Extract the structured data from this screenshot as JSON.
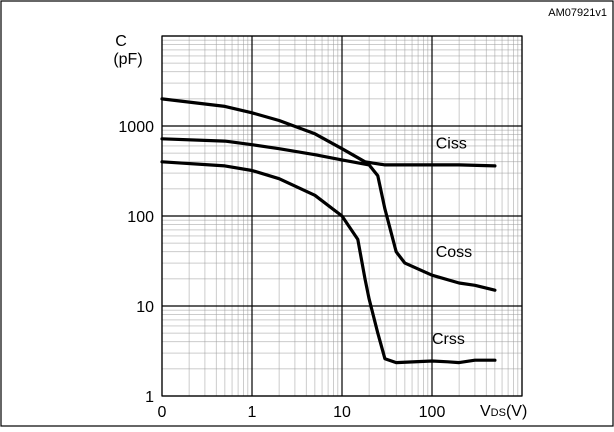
{
  "figure_id": "AM07921v1",
  "chart_data": {
    "type": "line",
    "title": "",
    "xlabel": "VDS(V)",
    "xlabel_main": "V",
    "xlabel_sub": "DS",
    "xlabel_unit": "(V)",
    "ylabel": "C",
    "ylabel_unit": "(pF)",
    "x_scale": "log (first decade labeled 0)",
    "y_scale": "log",
    "xlim": [
      0.1,
      1000
    ],
    "ylim": [
      1,
      10000
    ],
    "grid": true,
    "legend": "none (series labeled inline)",
    "x_ticks": [
      {
        "value": 0.1,
        "label": "0"
      },
      {
        "value": 1,
        "label": "1"
      },
      {
        "value": 10,
        "label": "10"
      },
      {
        "value": 100,
        "label": "100"
      }
    ],
    "y_ticks": [
      {
        "value": 1,
        "label": "1"
      },
      {
        "value": 10,
        "label": "10"
      },
      {
        "value": 100,
        "label": "100"
      },
      {
        "value": 1000,
        "label": "1000"
      }
    ],
    "series": [
      {
        "name": "Ciss",
        "x": [
          0.1,
          0.5,
          1,
          2,
          5,
          10,
          18,
          30,
          50,
          100,
          200,
          500
        ],
        "y": [
          2000,
          1650,
          1400,
          1150,
          820,
          560,
          400,
          370,
          370,
          370,
          370,
          360
        ]
      },
      {
        "name": "Coss",
        "x": [
          0.1,
          0.5,
          1,
          2,
          5,
          10,
          20,
          25,
          30,
          40,
          50,
          100,
          200,
          300,
          500
        ],
        "y": [
          720,
          680,
          620,
          560,
          480,
          420,
          370,
          280,
          120,
          40,
          30,
          22,
          18,
          17,
          15
        ]
      },
      {
        "name": "Crss",
        "x": [
          0.1,
          0.5,
          1,
          2,
          5,
          10,
          15,
          18,
          20,
          25,
          30,
          40,
          100,
          150,
          200,
          300,
          500
        ],
        "y": [
          400,
          360,
          320,
          260,
          170,
          100,
          55,
          20,
          12,
          5,
          2.6,
          2.35,
          2.45,
          2.4,
          2.35,
          2.5,
          2.5
        ]
      }
    ]
  }
}
